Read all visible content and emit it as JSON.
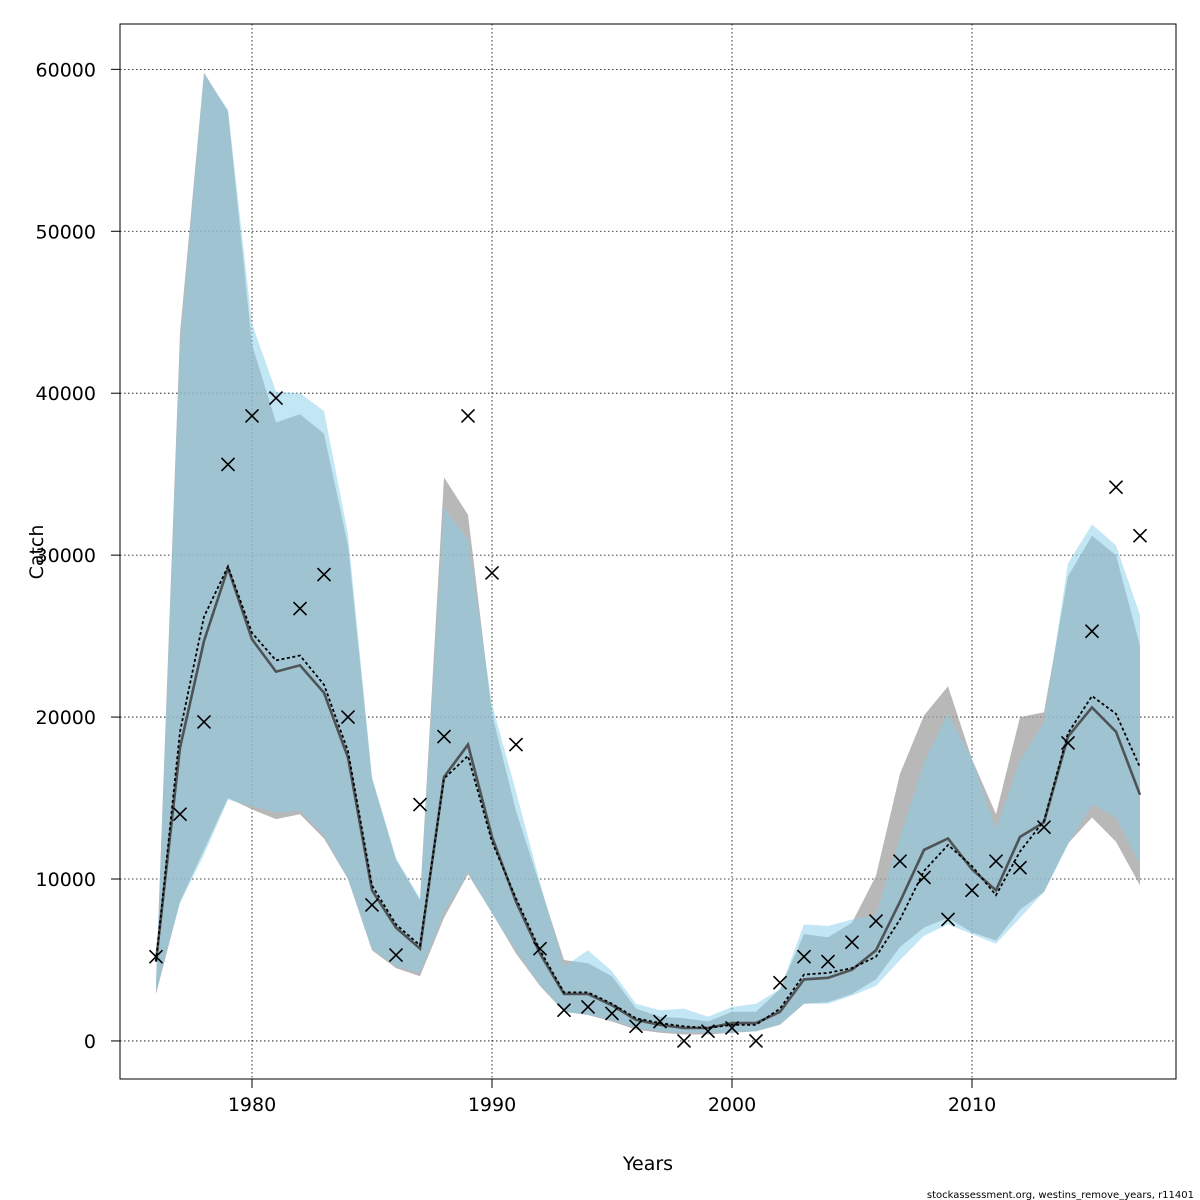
{
  "chart_data": {
    "type": "line",
    "xlabel": "Years",
    "ylabel": "Catch",
    "xlim": [
      1974.5,
      2018.5
    ],
    "ylim": [
      -2350,
      62800
    ],
    "xticks": [
      1980,
      1990,
      2000,
      2010
    ],
    "yticks": [
      0,
      10000,
      20000,
      30000,
      40000,
      50000,
      60000
    ],
    "grid": true,
    "colors": {
      "band_a": "#a0a0a0",
      "band_b": "#87ceeb",
      "line_a": "#404040",
      "line_b": "#000000",
      "markers": "#000000"
    },
    "x": [
      1976,
      1977,
      1978,
      1979,
      1980,
      1981,
      1982,
      1983,
      1984,
      1985,
      1986,
      1987,
      1988,
      1989,
      1990,
      1991,
      1992,
      1993,
      1994,
      1995,
      1996,
      1997,
      1998,
      1999,
      2000,
      2001,
      2002,
      2003,
      2004,
      2005,
      2006,
      2007,
      2008,
      2009,
      2010,
      2011,
      2012,
      2013,
      2014,
      2015,
      2016,
      2017
    ],
    "series": [
      {
        "style": "band",
        "color": "#a0a0a0",
        "lower": [
          2900,
          8600,
          11800,
          15000,
          14300,
          13700,
          14000,
          12500,
          10000,
          5600,
          4500,
          4000,
          7600,
          10300,
          7900,
          5400,
          3400,
          1800,
          1600,
          1200,
          700,
          500,
          400,
          400,
          500,
          600,
          1000,
          2300,
          2400,
          2900,
          3800,
          5800,
          7000,
          7600,
          6700,
          6200,
          8100,
          9200,
          12200,
          13800,
          12300,
          9600
        ],
        "upper": [
          3600,
          43700,
          59800,
          57400,
          43000,
          38200,
          38700,
          37500,
          30600,
          16200,
          11200,
          8700,
          34800,
          32500,
          20200,
          14200,
          9600,
          5000,
          4800,
          4000,
          2000,
          1500,
          1400,
          1200,
          1800,
          1800,
          3200,
          6600,
          6400,
          7300,
          10200,
          16500,
          20100,
          21900,
          17400,
          14000,
          20000,
          20300,
          28700,
          31200,
          30000,
          24400
        ],
        "mid": [
          4900,
          18100,
          24700,
          29200,
          24800,
          22800,
          23200,
          21500,
          17500,
          9300,
          7000,
          5700,
          16300,
          18300,
          12600,
          8600,
          5400,
          2900,
          2900,
          2200,
          1300,
          1000,
          800,
          800,
          1100,
          1100,
          1800,
          3800,
          3900,
          4400,
          5600,
          8600,
          11800,
          12500,
          10600,
          9300,
          12600,
          13500,
          18800,
          20600,
          19100,
          15200
        ]
      },
      {
        "style": "band",
        "color": "#87ceeb",
        "lower": [
          3100,
          8500,
          11500,
          14900,
          14500,
          14100,
          14200,
          12700,
          10000,
          5700,
          4600,
          4200,
          7900,
          10400,
          7900,
          5600,
          3500,
          1800,
          1600,
          1300,
          800,
          600,
          500,
          500,
          500,
          600,
          1000,
          2300,
          2300,
          2800,
          3400,
          5000,
          6500,
          7200,
          6600,
          6000,
          7600,
          9200,
          12100,
          14600,
          13800,
          10900
        ],
        "upper": [
          3600,
          42800,
          59700,
          57500,
          44300,
          40100,
          40000,
          38900,
          31300,
          16300,
          11300,
          8800,
          32900,
          31000,
          20800,
          15400,
          9800,
          4600,
          5600,
          4300,
          2300,
          1900,
          2000,
          1500,
          2100,
          2300,
          3200,
          7200,
          7100,
          7500,
          7800,
          12600,
          17200,
          20200,
          17400,
          13100,
          17300,
          19700,
          29500,
          31900,
          30600,
          26300
        ],
        "mid": [
          4900,
          19100,
          26200,
          29300,
          25200,
          23500,
          23800,
          22000,
          17900,
          9600,
          7200,
          5900,
          16200,
          17600,
          12300,
          8800,
          5600,
          3000,
          3000,
          2300,
          1400,
          1100,
          900,
          800,
          1000,
          1000,
          2000,
          4100,
          4200,
          4500,
          5200,
          7500,
          10500,
          12100,
          10800,
          9000,
          11700,
          13600,
          19000,
          21300,
          20200,
          16900
        ]
      }
    ],
    "observations": [
      {
        "x": 1976,
        "y": 5200
      },
      {
        "x": 1977,
        "y": 14000
      },
      {
        "x": 1978,
        "y": 19700
      },
      {
        "x": 1979,
        "y": 35600
      },
      {
        "x": 1980,
        "y": 38600
      },
      {
        "x": 1981,
        "y": 39700
      },
      {
        "x": 1982,
        "y": 26700
      },
      {
        "x": 1983,
        "y": 28800
      },
      {
        "x": 1984,
        "y": 20000
      },
      {
        "x": 1985,
        "y": 8400
      },
      {
        "x": 1986,
        "y": 5300
      },
      {
        "x": 1987,
        "y": 14600
      },
      {
        "x": 1988,
        "y": 18800
      },
      {
        "x": 1989,
        "y": 38600
      },
      {
        "x": 1990,
        "y": 28900
      },
      {
        "x": 1991,
        "y": 18300
      },
      {
        "x": 1992,
        "y": 5700
      },
      {
        "x": 1993,
        "y": 1900
      },
      {
        "x": 1994,
        "y": 2100
      },
      {
        "x": 1995,
        "y": 1700
      },
      {
        "x": 1996,
        "y": 900
      },
      {
        "x": 1997,
        "y": 1200
      },
      {
        "x": 1998,
        "y": 0
      },
      {
        "x": 1999,
        "y": 600
      },
      {
        "x": 2000,
        "y": 800
      },
      {
        "x": 2001,
        "y": 0
      },
      {
        "x": 2002,
        "y": 3600
      },
      {
        "x": 2003,
        "y": 5200
      },
      {
        "x": 2004,
        "y": 4900
      },
      {
        "x": 2005,
        "y": 6100
      },
      {
        "x": 2006,
        "y": 7400
      },
      {
        "x": 2007,
        "y": 11100
      },
      {
        "x": 2008,
        "y": 10100
      },
      {
        "x": 2009,
        "y": 7500
      },
      {
        "x": 2010,
        "y": 9300
      },
      {
        "x": 2011,
        "y": 11100
      },
      {
        "x": 2012,
        "y": 10700
      },
      {
        "x": 2013,
        "y": 13200
      },
      {
        "x": 2014,
        "y": 18400
      },
      {
        "x": 2015,
        "y": 25300
      },
      {
        "x": 2016,
        "y": 34200
      },
      {
        "x": 2017,
        "y": 31200
      }
    ]
  },
  "footer": {
    "credit": "stockassessment.org, westins_remove_years, r11401"
  }
}
